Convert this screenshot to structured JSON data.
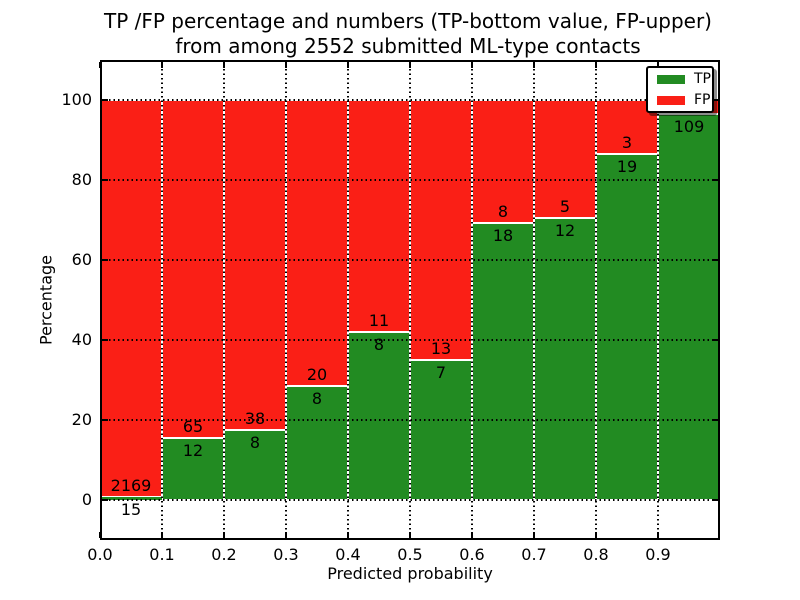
{
  "title": {
    "line1": "TP /FP percentage and numbers (TP-bottom value, FP-upper)",
    "line2": "from among 2552 submitted ML-type contacts"
  },
  "axes": {
    "xlabel": "Predicted probability",
    "ylabel": "Percentage",
    "x_tick_labels": [
      "0.0",
      "0.1",
      "0.2",
      "0.3",
      "0.4",
      "0.5",
      "0.6",
      "0.7",
      "0.8",
      "0.9"
    ],
    "y_tick_labels": [
      "0",
      "20",
      "40",
      "60",
      "80",
      "100"
    ],
    "y_tick_values": [
      0,
      20,
      40,
      60,
      80,
      100
    ],
    "xlim": [
      0.0,
      1.0
    ],
    "ylim": [
      -10,
      110
    ],
    "grid_style": "dotted"
  },
  "legend": {
    "items": [
      {
        "label": "TP",
        "color_key": "tp"
      },
      {
        "label": "FP",
        "color_key": "fp"
      }
    ]
  },
  "colors": {
    "tp": "#228b22",
    "fp": "#fa1f16",
    "bar_edge": "#ffffff",
    "grid": "#000000",
    "text": "#000000",
    "background": "#ffffff"
  },
  "chart_data": {
    "type": "bar",
    "stacked": true,
    "title": "TP /FP percentage and numbers (TP-bottom value, FP-upper) from among 2552 submitted ML-type contacts",
    "xlabel": "Predicted probability",
    "ylabel": "Percentage",
    "total_submitted": 2552,
    "legend_position": "upper right",
    "grid": true,
    "bin_edges": [
      0.0,
      0.1,
      0.2,
      0.3,
      0.4,
      0.5,
      0.6,
      0.7,
      0.8,
      0.9,
      1.0
    ],
    "bars": [
      {
        "bin": "0.0-0.1",
        "tp_count": 15,
        "fp_count": 2169,
        "tp_percent": 0.69
      },
      {
        "bin": "0.1-0.2",
        "tp_count": 12,
        "fp_count": 65,
        "tp_percent": 15.6
      },
      {
        "bin": "0.2-0.3",
        "tp_count": 8,
        "fp_count": 38,
        "tp_percent": 17.4
      },
      {
        "bin": "0.3-0.4",
        "tp_count": 8,
        "fp_count": 20,
        "tp_percent": 28.6
      },
      {
        "bin": "0.4-0.5",
        "tp_count": 8,
        "fp_count": 11,
        "tp_percent": 42.1
      },
      {
        "bin": "0.5-0.6",
        "tp_count": 7,
        "fp_count": 13,
        "tp_percent": 35.0
      },
      {
        "bin": "0.6-0.7",
        "tp_count": 18,
        "fp_count": 8,
        "tp_percent": 69.2
      },
      {
        "bin": "0.7-0.8",
        "tp_count": 12,
        "fp_count": 5,
        "tp_percent": 70.6
      },
      {
        "bin": "0.8-0.9",
        "tp_count": 19,
        "fp_count": 3,
        "tp_percent": 86.4
      },
      {
        "bin": "0.9-1.0",
        "tp_count": 109,
        "fp_count": null,
        "tp_percent": 96.5
      }
    ],
    "annotation_note": "TP count printed just below each TP/FP boundary, FP count just above it"
  }
}
